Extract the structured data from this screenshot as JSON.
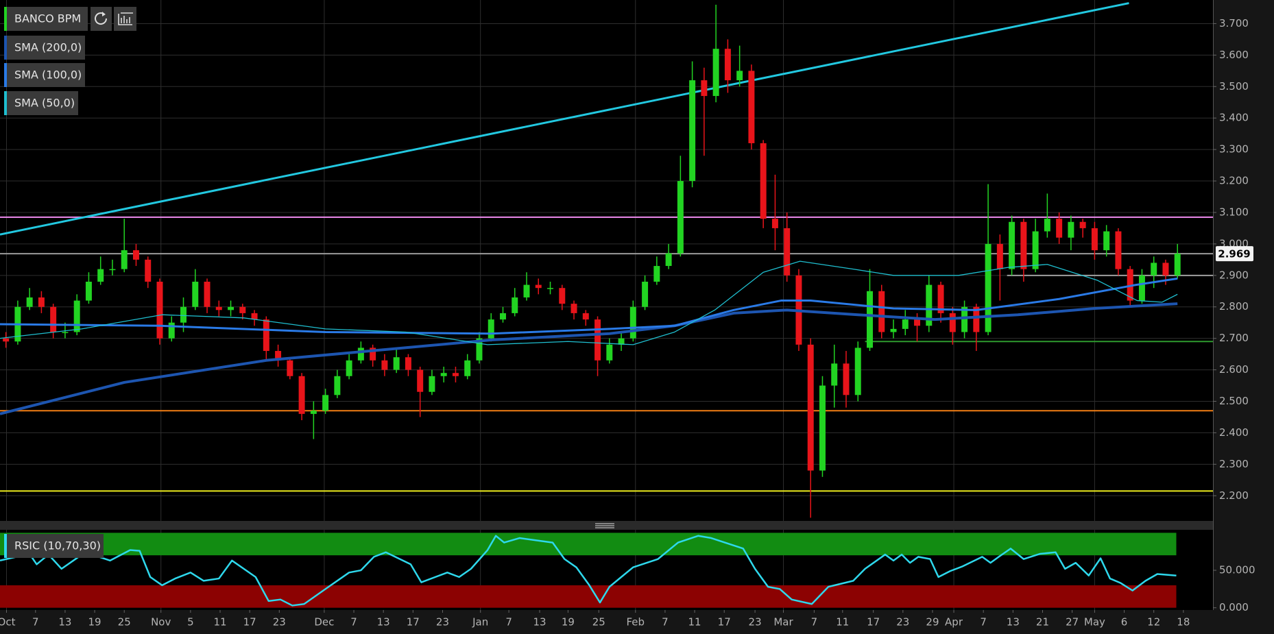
{
  "chart_data": [
    {
      "type": "candlestick",
      "series": [
        {
          "name": "BANCO BPM",
          "color": "#22d422",
          "down_color": "#e8141a",
          "open": [
            2.7,
            2.69,
            2.8,
            2.83,
            2.8,
            2.72,
            2.72,
            2.82,
            2.88,
            2.92,
            2.92,
            2.98,
            2.95,
            2.88,
            2.7,
            2.75,
            2.8,
            2.88,
            2.8,
            2.79,
            2.8,
            2.78,
            2.76,
            2.66,
            2.63,
            2.58,
            2.46,
            2.47,
            2.52,
            2.58,
            2.63,
            2.67,
            2.63,
            2.6,
            2.64,
            2.6,
            2.53,
            2.58,
            2.59,
            2.58,
            2.63,
            2.7,
            2.76,
            2.78,
            2.83,
            2.87,
            2.86,
            2.86,
            2.81,
            2.78,
            2.76,
            2.63,
            2.68,
            2.7,
            2.8,
            2.88,
            2.93,
            2.97,
            3.2,
            3.52,
            3.47,
            3.62,
            3.52,
            3.55,
            3.32,
            3.08,
            3.05,
            2.9,
            2.68,
            2.28,
            2.55,
            2.62,
            2.52,
            2.67,
            2.85,
            2.72,
            2.73,
            2.76,
            2.74,
            2.87,
            2.78,
            2.72,
            2.8,
            2.72,
            3.0,
            2.92,
            3.07,
            2.92,
            3.04,
            3.08,
            3.02,
            3.07,
            3.05,
            2.98,
            3.04,
            2.92,
            2.82,
            2.9,
            2.94,
            2.9
          ],
          "high": [
            2.72,
            2.82,
            2.86,
            2.85,
            2.81,
            2.75,
            2.84,
            2.91,
            2.96,
            2.95,
            3.08,
            3.0,
            2.96,
            2.89,
            2.77,
            2.83,
            2.92,
            2.89,
            2.82,
            2.82,
            2.81,
            2.79,
            2.77,
            2.68,
            2.64,
            2.59,
            2.5,
            2.54,
            2.6,
            2.65,
            2.69,
            2.68,
            2.65,
            2.67,
            2.65,
            2.61,
            2.6,
            2.61,
            2.61,
            2.65,
            2.72,
            2.78,
            2.8,
            2.86,
            2.91,
            2.89,
            2.88,
            2.87,
            2.82,
            2.79,
            2.77,
            2.7,
            2.72,
            2.82,
            2.9,
            2.96,
            3.0,
            3.28,
            3.58,
            3.56,
            3.76,
            3.65,
            3.63,
            3.57,
            3.33,
            3.22,
            3.1,
            2.92,
            2.7,
            2.58,
            2.68,
            2.66,
            2.69,
            2.92,
            2.87,
            2.76,
            2.79,
            2.78,
            2.9,
            2.88,
            2.8,
            2.82,
            2.81,
            3.19,
            3.03,
            3.09,
            3.08,
            3.08,
            3.16,
            3.1,
            3.09,
            3.08,
            3.07,
            3.06,
            3.05,
            2.93,
            2.92,
            2.96,
            2.95,
            3.0
          ],
          "low": [
            2.67,
            2.68,
            2.79,
            2.78,
            2.7,
            2.7,
            2.71,
            2.81,
            2.87,
            2.9,
            2.91,
            2.93,
            2.86,
            2.68,
            2.69,
            2.72,
            2.79,
            2.78,
            2.77,
            2.77,
            2.76,
            2.74,
            2.63,
            2.61,
            2.57,
            2.44,
            2.38,
            2.46,
            2.51,
            2.57,
            2.62,
            2.61,
            2.58,
            2.59,
            2.58,
            2.45,
            2.52,
            2.56,
            2.56,
            2.57,
            2.62,
            2.69,
            2.75,
            2.77,
            2.82,
            2.84,
            2.84,
            2.79,
            2.76,
            2.74,
            2.58,
            2.62,
            2.66,
            2.69,
            2.79,
            2.87,
            2.92,
            2.96,
            3.18,
            3.28,
            3.45,
            3.48,
            3.5,
            3.3,
            3.05,
            2.98,
            2.88,
            2.66,
            2.13,
            2.26,
            2.48,
            2.48,
            2.5,
            2.66,
            2.7,
            2.7,
            2.71,
            2.69,
            2.72,
            2.75,
            2.68,
            2.7,
            2.66,
            2.71,
            2.82,
            2.9,
            2.88,
            2.91,
            3.02,
            3.0,
            2.98,
            3.02,
            2.95,
            2.96,
            2.9,
            2.8,
            2.81,
            2.86,
            2.87,
            2.89
          ],
          "close": [
            2.69,
            2.8,
            2.83,
            2.8,
            2.72,
            2.72,
            2.82,
            2.88,
            2.92,
            2.92,
            2.98,
            2.95,
            2.88,
            2.7,
            2.75,
            2.8,
            2.88,
            2.8,
            2.79,
            2.8,
            2.78,
            2.76,
            2.66,
            2.63,
            2.58,
            2.46,
            2.47,
            2.52,
            2.58,
            2.63,
            2.67,
            2.63,
            2.6,
            2.64,
            2.6,
            2.53,
            2.58,
            2.59,
            2.58,
            2.63,
            2.7,
            2.76,
            2.78,
            2.83,
            2.87,
            2.86,
            2.86,
            2.81,
            2.78,
            2.76,
            2.63,
            2.68,
            2.7,
            2.8,
            2.88,
            2.93,
            2.97,
            3.2,
            3.52,
            3.47,
            3.62,
            3.52,
            3.55,
            3.32,
            3.08,
            3.05,
            2.9,
            2.68,
            2.28,
            2.55,
            2.62,
            2.52,
            2.67,
            2.85,
            2.72,
            2.73,
            2.76,
            2.74,
            2.87,
            2.78,
            2.72,
            2.8,
            2.72,
            3.0,
            2.92,
            3.07,
            2.92,
            3.04,
            3.08,
            3.02,
            3.07,
            3.05,
            2.98,
            3.04,
            2.92,
            2.82,
            2.9,
            2.94,
            2.9,
            2.969
          ]
        }
      ],
      "overlays": [
        {
          "name": "SMA (200,0)",
          "color": "#1d55b0",
          "width": 4,
          "x": [
            -0.5,
            10,
            22,
            41,
            51,
            56.5,
            61.5,
            66,
            72,
            78.5,
            85.5,
            92,
            99
          ],
          "values": [
            2.46,
            2.56,
            2.63,
            2.695,
            2.715,
            2.74,
            2.78,
            2.79,
            2.775,
            2.76,
            2.775,
            2.795,
            2.81
          ]
        },
        {
          "name": "SMA (100,0)",
          "color": "#2a7ae6",
          "width": 3,
          "x": [
            -0.5,
            13,
            27,
            41,
            51,
            56.5,
            61.5,
            65.5,
            68,
            75,
            82,
            89,
            95.5,
            99
          ],
          "values": [
            2.745,
            2.74,
            2.72,
            2.715,
            2.73,
            2.74,
            2.79,
            2.82,
            2.82,
            2.795,
            2.79,
            2.825,
            2.87,
            2.89
          ]
        },
        {
          "name": "SMA (50,0)",
          "color": "#1fbfd0",
          "width": 1.3,
          "x": [
            -0.5,
            6.4,
            13.2,
            20.1,
            27,
            33.8,
            40.7,
            47.5,
            53,
            56.5,
            59.9,
            64,
            67.1,
            71.6,
            75,
            80.5,
            84.6,
            88,
            92.2,
            95.6,
            97.7,
            99
          ],
          "values": [
            2.7,
            2.73,
            2.775,
            2.765,
            2.73,
            2.72,
            2.68,
            2.69,
            2.68,
            2.72,
            2.79,
            2.91,
            2.945,
            2.92,
            2.9,
            2.9,
            2.925,
            2.935,
            2.885,
            2.82,
            2.815,
            2.84
          ]
        }
      ],
      "trendline": {
        "color": "#22c8e0",
        "x": [
          -0.5,
          94.9
        ],
        "values": [
          3.03,
          3.765
        ]
      },
      "levels": [
        {
          "value": 3.085,
          "color": "#f08cf0"
        },
        {
          "value": 2.969,
          "color": "#9a9a9a"
        },
        {
          "value": 2.47,
          "color": "#f07d14"
        },
        {
          "value": 2.215,
          "color": "#ecec1e"
        },
        {
          "value": 2.69,
          "color": "#2e9a2e",
          "from": 72.6
        },
        {
          "value": 2.9,
          "color": "#a0a0a0",
          "from": 84.6
        }
      ],
      "last_price": 2.969,
      "xlim": [
        -0.5,
        102
      ],
      "xticks": [
        {
          "value": 0.05,
          "label": "Oct"
        },
        {
          "value": 2.5,
          "label": "7"
        },
        {
          "value": 5.0,
          "label": "13"
        },
        {
          "value": 7.5,
          "label": "19"
        },
        {
          "value": 10.0,
          "label": "25"
        },
        {
          "value": 13.1,
          "label": "Nov"
        },
        {
          "value": 15.6,
          "label": "5"
        },
        {
          "value": 18.1,
          "label": "11"
        },
        {
          "value": 20.6,
          "label": "17"
        },
        {
          "value": 23.1,
          "label": "23"
        },
        {
          "value": 26.9,
          "label": "Dec"
        },
        {
          "value": 29.4,
          "label": "7"
        },
        {
          "value": 31.9,
          "label": "13"
        },
        {
          "value": 34.4,
          "label": "17"
        },
        {
          "value": 36.9,
          "label": "23"
        },
        {
          "value": 40.1,
          "label": "Jan"
        },
        {
          "value": 42.5,
          "label": "7"
        },
        {
          "value": 45.1,
          "label": "13"
        },
        {
          "value": 47.5,
          "label": "19"
        },
        {
          "value": 50.1,
          "label": "25"
        },
        {
          "value": 53.2,
          "label": "Feb"
        },
        {
          "value": 55.7,
          "label": "7"
        },
        {
          "value": 58.2,
          "label": "11"
        },
        {
          "value": 60.7,
          "label": "17"
        },
        {
          "value": 63.3,
          "label": "23"
        },
        {
          "value": 65.7,
          "label": "Mar"
        },
        {
          "value": 68.3,
          "label": "7"
        },
        {
          "value": 70.7,
          "label": "11"
        },
        {
          "value": 73.3,
          "label": "17"
        },
        {
          "value": 75.8,
          "label": "23"
        },
        {
          "value": 78.3,
          "label": "29"
        },
        {
          "value": 80.1,
          "label": "Apr"
        },
        {
          "value": 82.6,
          "label": "7"
        },
        {
          "value": 85.1,
          "label": "13"
        },
        {
          "value": 87.6,
          "label": "21"
        },
        {
          "value": 90.1,
          "label": "27"
        },
        {
          "value": 92.0,
          "label": "May"
        },
        {
          "value": 94.5,
          "label": "6"
        },
        {
          "value": 97.0,
          "label": "12"
        },
        {
          "value": 99.5,
          "label": "18"
        }
      ],
      "ylim": [
        2.12,
        3.775
      ],
      "yticks": [
        {
          "value": 2.2,
          "label": "2.200"
        },
        {
          "value": 2.3,
          "label": "2.300"
        },
        {
          "value": 2.4,
          "label": "2.400"
        },
        {
          "value": 2.5,
          "label": "2.500"
        },
        {
          "value": 2.6,
          "label": "2.600"
        },
        {
          "value": 2.7,
          "label": "2.700"
        },
        {
          "value": 2.8,
          "label": "2.800"
        },
        {
          "value": 2.9,
          "label": "2.900"
        },
        {
          "value": 3.0,
          "label": "3.000"
        },
        {
          "value": 3.1,
          "label": "3.100"
        },
        {
          "value": 3.2,
          "label": "3.200"
        },
        {
          "value": 3.3,
          "label": "3.300"
        },
        {
          "value": 3.4,
          "label": "3.400"
        },
        {
          "value": 3.5,
          "label": "3.500"
        },
        {
          "value": 3.6,
          "label": "3.600"
        },
        {
          "value": 3.7,
          "label": "3.700"
        }
      ],
      "grid": true
    },
    {
      "type": "line",
      "series": [
        {
          "name": "RSIC (10,70,30)",
          "color": "#2ed8ec",
          "x": [
            -0.5,
            0.9,
            1.9,
            2.6,
            3.6,
            4.7,
            5.7,
            6.7,
            8.8,
            10.5,
            11.3,
            12.2,
            13.2,
            14.3,
            15.6,
            16.7,
            18.0,
            19.1,
            21.1,
            22.2,
            23.2,
            24.2,
            25.2,
            27.0,
            29.0,
            30.0,
            31.1,
            32.1,
            34.2,
            35.1,
            37.3,
            38.3,
            39.3,
            40.7,
            41.4,
            42.1,
            43.4,
            46.2,
            47.2,
            48.2,
            49.3,
            50.2,
            51.0,
            52.0,
            53.0,
            55.1,
            56.8,
            58.5,
            59.6,
            62.3,
            63.3,
            64.4,
            65.4,
            66.4,
            68.1,
            69.5,
            71.6,
            72.6,
            74.3,
            75.0,
            75.7,
            76.4,
            77.1,
            78.1,
            78.8,
            79.8,
            80.8,
            82.5,
            83.2,
            83.9,
            84.9,
            86.0,
            87.4,
            88.7,
            89.5,
            90.4,
            91.5,
            92.5,
            93.3,
            94.2,
            95.2,
            96.3,
            97.3,
            98.9
          ],
          "values": [
            63,
            68,
            74,
            58,
            71,
            52,
            63,
            74,
            63,
            77,
            76,
            41,
            30,
            39,
            47,
            36,
            39,
            63,
            41,
            9,
            11,
            3,
            5,
            25,
            47,
            50,
            68,
            74,
            58,
            34,
            47,
            41,
            52,
            77,
            96,
            87,
            93,
            87,
            65,
            54,
            30,
            7,
            28,
            41,
            54,
            65,
            87,
            96,
            93,
            79,
            52,
            28,
            25,
            11,
            5,
            28,
            36,
            52,
            71,
            63,
            71,
            60,
            68,
            65,
            41,
            49,
            55,
            68,
            60,
            68,
            79,
            65,
            72,
            74,
            52,
            60,
            43,
            66,
            39,
            33,
            23,
            36,
            45,
            43
          ]
        }
      ],
      "bands": [
        {
          "from": 70,
          "to": 100,
          "color": "#128c12"
        },
        {
          "from": 0,
          "to": 30,
          "color": "#8c0202"
        }
      ],
      "xlim": [
        -0.5,
        102
      ],
      "ylim": [
        -3,
        104
      ],
      "yticks": [
        {
          "value": 0,
          "label": "0.000"
        },
        {
          "value": 50,
          "label": "50.000"
        }
      ]
    }
  ]
}
